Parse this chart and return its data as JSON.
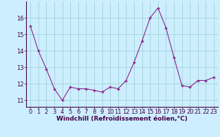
{
  "x": [
    0,
    1,
    2,
    3,
    4,
    5,
    6,
    7,
    8,
    9,
    10,
    11,
    12,
    13,
    14,
    15,
    16,
    17,
    18,
    19,
    20,
    21,
    22,
    23
  ],
  "y": [
    15.5,
    14.0,
    12.9,
    11.7,
    11.0,
    11.8,
    11.7,
    11.7,
    11.6,
    11.5,
    11.8,
    11.7,
    12.2,
    13.3,
    14.6,
    16.0,
    16.6,
    15.4,
    13.6,
    11.9,
    11.8,
    12.2,
    12.2,
    12.4
  ],
  "line_color": "#882288",
  "marker": "+",
  "marker_size": 3.5,
  "marker_linewidth": 1.0,
  "bg_color": "#cceeff",
  "grid_color": "#99cccc",
  "xlabel": "Windchill (Refroidissement éolien,°C)",
  "xlabel_fontsize": 6.5,
  "tick_fontsize": 6.0,
  "ylim": [
    10.6,
    17.0
  ],
  "yticks": [
    11,
    12,
    13,
    14,
    15,
    16
  ],
  "xticks": [
    0,
    1,
    2,
    3,
    4,
    5,
    6,
    7,
    8,
    9,
    10,
    11,
    12,
    13,
    14,
    15,
    16,
    17,
    18,
    19,
    20,
    21,
    22,
    23
  ],
  "xlim": [
    -0.5,
    23.5
  ]
}
